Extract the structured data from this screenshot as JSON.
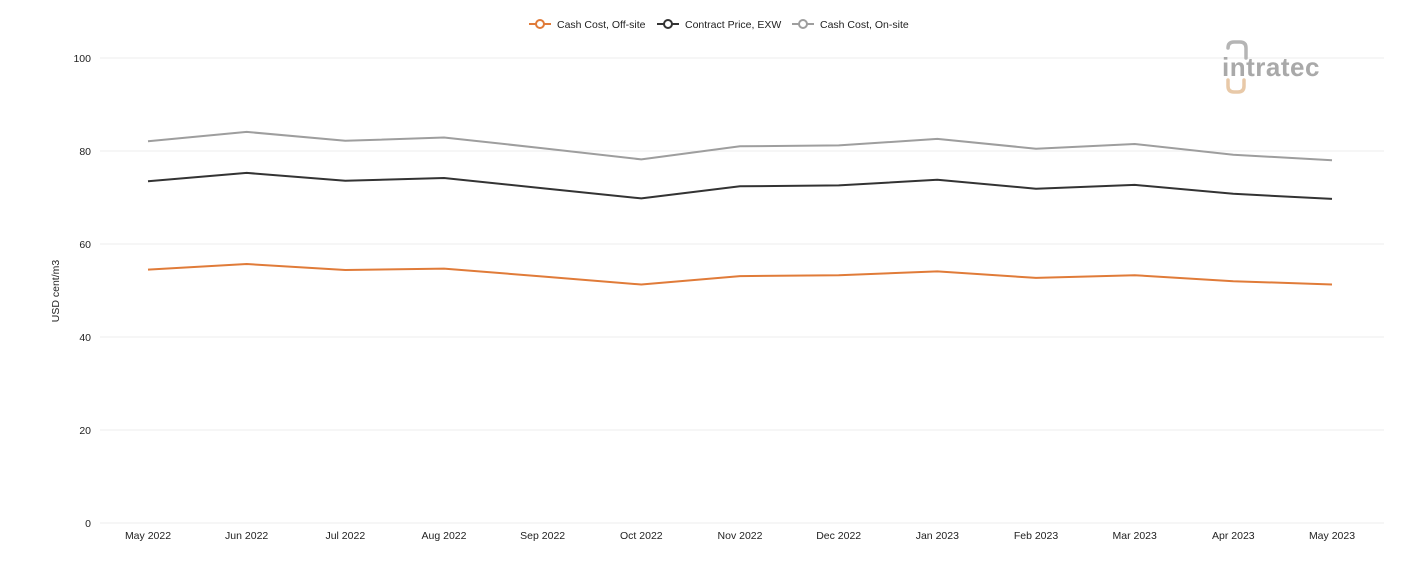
{
  "logo": {
    "text": "intratec",
    "accent_color": "#e8c9a8",
    "text_color": "#a9a9a9"
  },
  "chart_data": {
    "type": "line",
    "title": "",
    "xlabel": "",
    "ylabel": "USD cent/m3",
    "ylim": [
      0,
      100
    ],
    "yticks": [
      0,
      20,
      40,
      60,
      80,
      100
    ],
    "grid": true,
    "legend_position": "top-center",
    "categories": [
      "May 2022",
      "Jun 2022",
      "Jul 2022",
      "Aug 2022",
      "Sep 2022",
      "Oct 2022",
      "Nov 2022",
      "Dec 2022",
      "Jan 2023",
      "Feb 2023",
      "Mar 2023",
      "Apr 2023",
      "May 2023"
    ],
    "series": [
      {
        "name": "Cash Cost, Off-site",
        "color": "#e07b39",
        "values": [
          54.5,
          55.7,
          54.4,
          54.7,
          53.0,
          51.3,
          53.1,
          53.3,
          54.1,
          52.7,
          53.3,
          52.0,
          51.3
        ]
      },
      {
        "name": "Contract Price, EXW",
        "color": "#333333",
        "values": [
          73.5,
          75.3,
          73.6,
          74.2,
          72.0,
          69.8,
          72.4,
          72.6,
          73.8,
          71.9,
          72.7,
          70.8,
          69.7
        ]
      },
      {
        "name": "Cash Cost, On-site",
        "color": "#9e9e9e",
        "values": [
          82.1,
          84.1,
          82.2,
          82.9,
          80.6,
          78.2,
          81.0,
          81.2,
          82.6,
          80.5,
          81.5,
          79.2,
          78.0
        ]
      }
    ]
  }
}
